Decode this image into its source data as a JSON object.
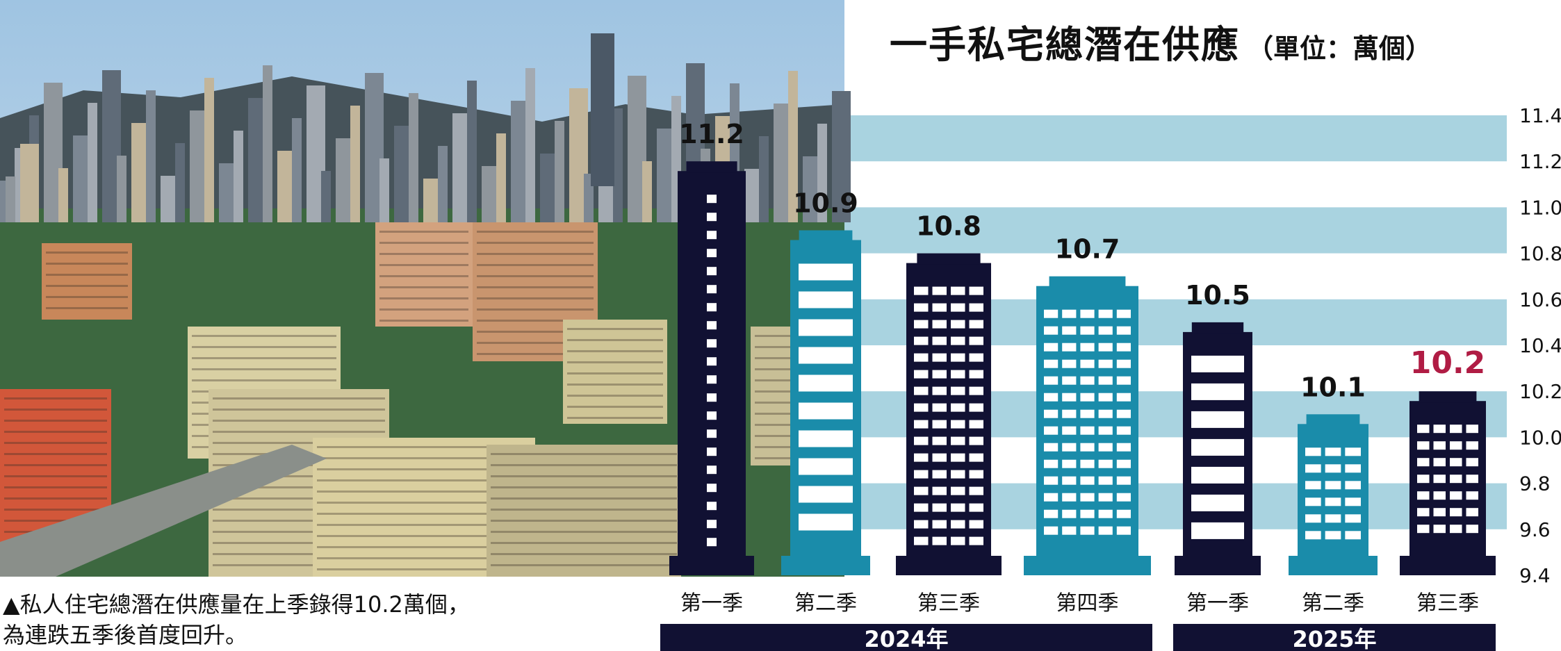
{
  "colors": {
    "navy": "#111133",
    "teal": "#1a8caa",
    "band": "#a9d3e0",
    "highlight": "#b01c44",
    "window": "#ffffff"
  },
  "caption": {
    "line1": "▲私人住宅總潛在供應量在上季錄得10.2萬個，",
    "line2": "為連跌五季後首度回升。"
  },
  "chart_data": {
    "type": "bar",
    "title": "一手私宅總潛在供應",
    "subtitle": "（單位：萬個）",
    "categories": [
      "第一季",
      "第二季",
      "第三季",
      "第四季",
      "第一季",
      "第二季",
      "第三季"
    ],
    "groups": [
      {
        "label": "2024年",
        "count": 4
      },
      {
        "label": "2025年",
        "count": 3
      }
    ],
    "series": [
      {
        "values": [
          11.2,
          10.9,
          10.8,
          10.7,
          10.5,
          10.1,
          10.2
        ]
      }
    ],
    "data_labels": [
      "11.2",
      "10.9",
      "10.8",
      "10.7",
      "10.5",
      "10.1",
      "10.2"
    ],
    "highlighted_index": 6,
    "bar_colors": [
      "navy",
      "teal",
      "navy",
      "teal",
      "navy",
      "teal",
      "navy"
    ],
    "ylim": [
      9.4,
      11.6
    ],
    "y_ticks": [
      "9.4",
      "9.6",
      "9.8",
      "10.0",
      "10.2",
      "10.4",
      "10.6",
      "10.8",
      "11.0",
      "11.2",
      "11.4"
    ],
    "axis_side": "right",
    "grid": "horizontal-bands"
  }
}
